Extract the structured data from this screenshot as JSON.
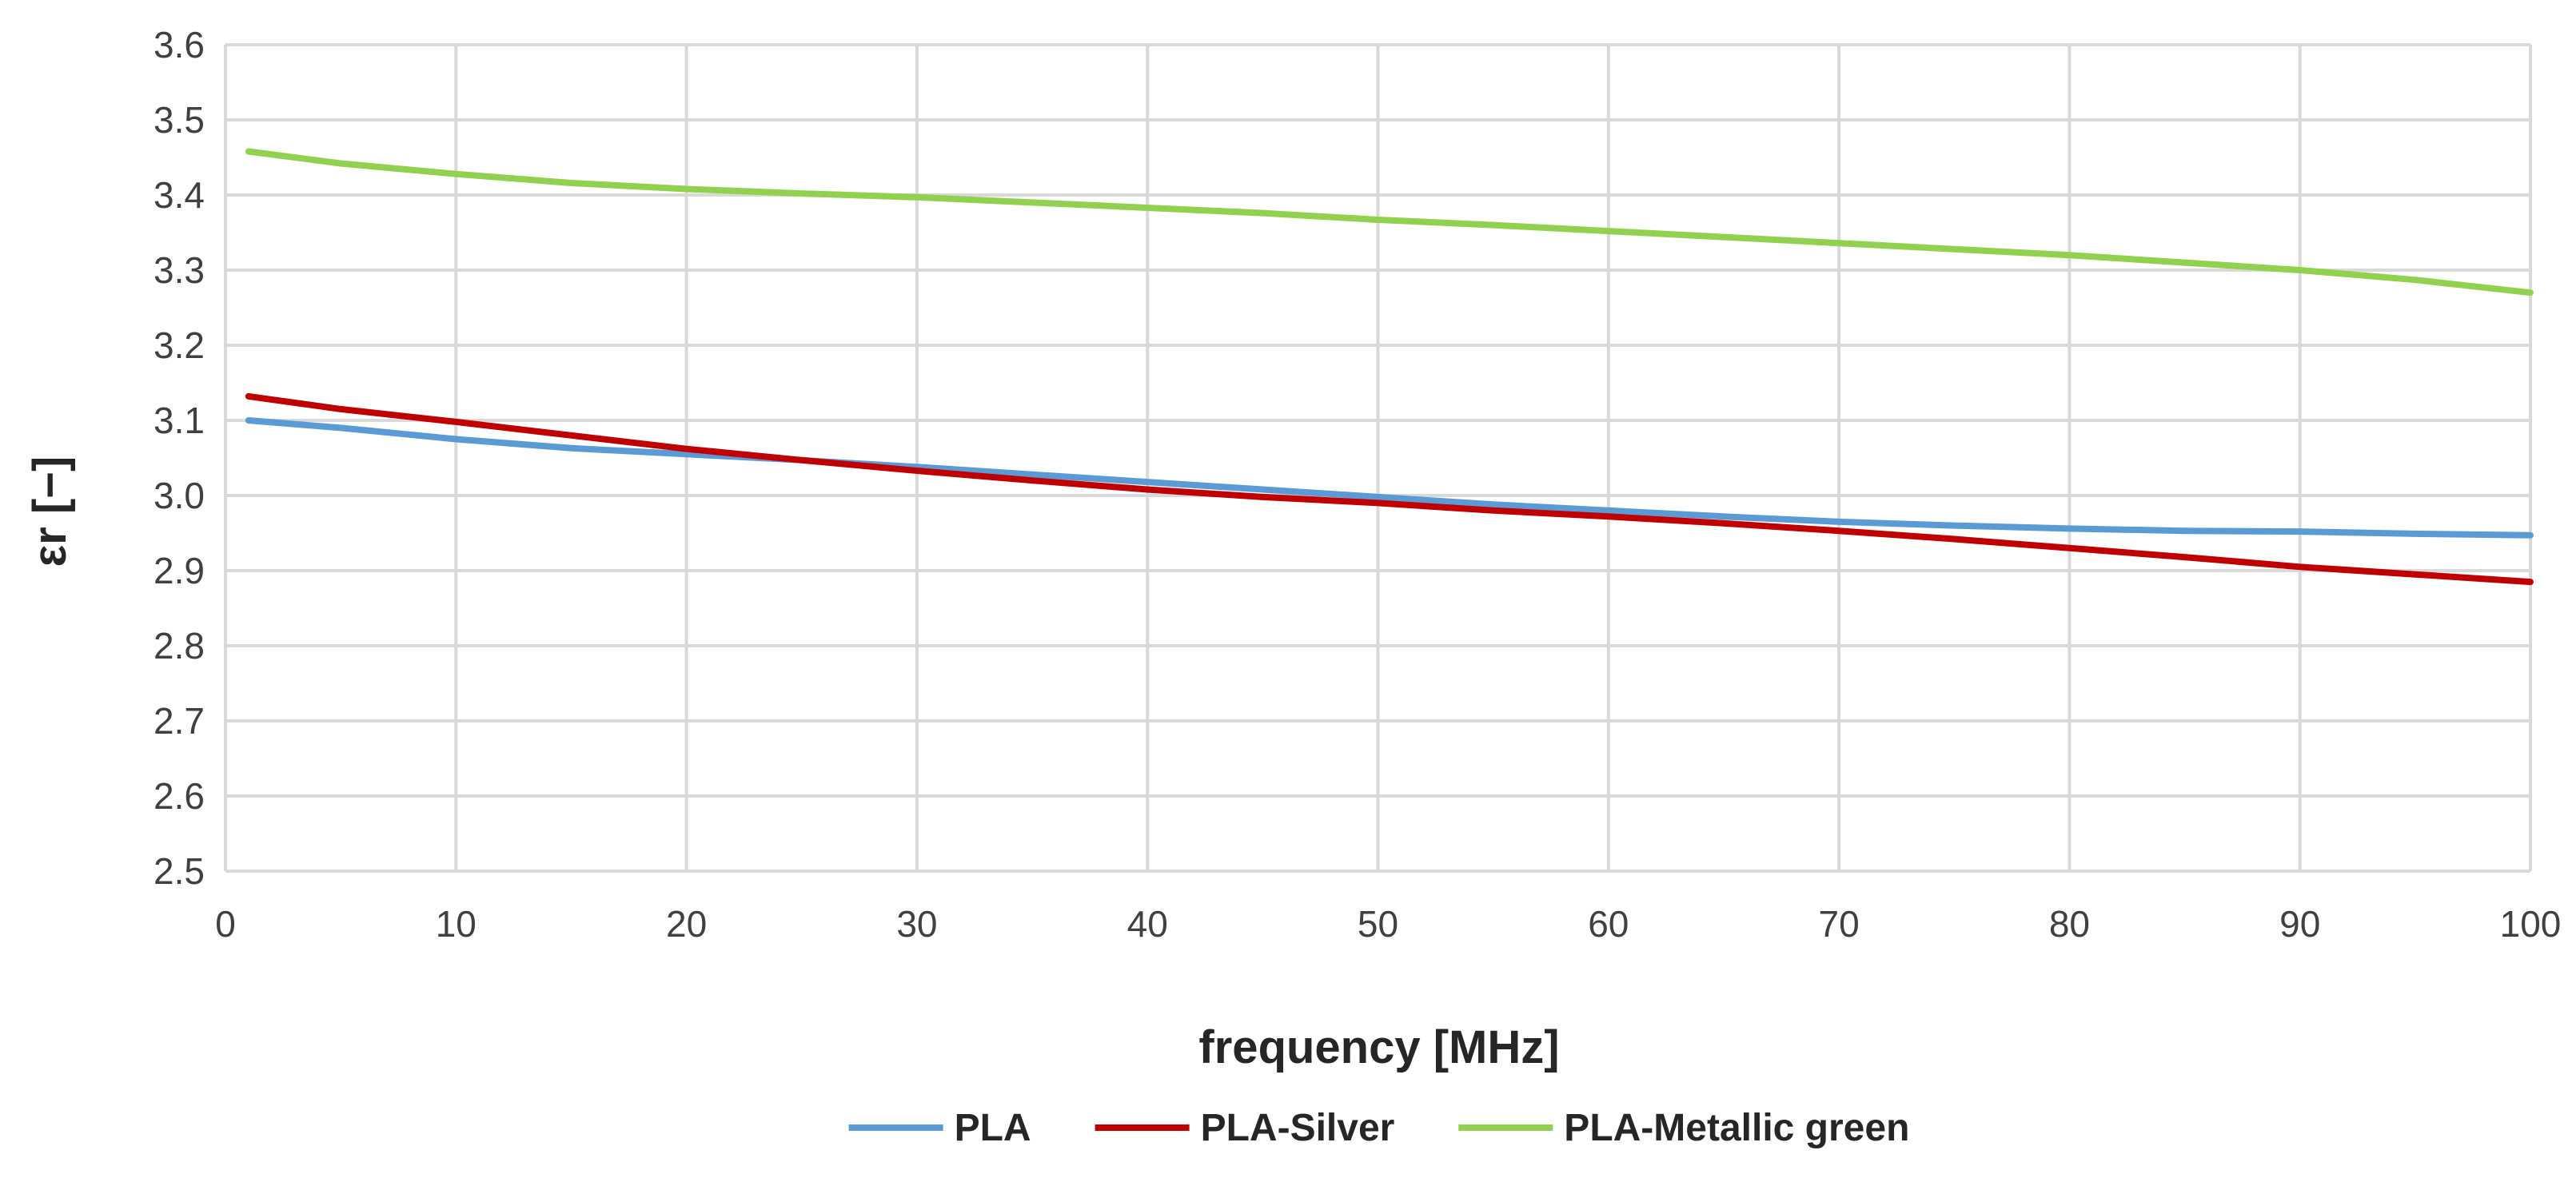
{
  "chart_data": {
    "type": "line",
    "title": "",
    "xlabel": "frequency [MHz]",
    "ylabel": "εr [−]",
    "xlim": [
      0,
      100
    ],
    "ylim": [
      2.5,
      3.6
    ],
    "xticks": [
      0,
      10,
      20,
      30,
      40,
      50,
      60,
      70,
      80,
      90,
      100
    ],
    "yticks": [
      2.5,
      2.6,
      2.7,
      2.8,
      2.9,
      3.0,
      3.1,
      3.2,
      3.3,
      3.4,
      3.5,
      3.6
    ],
    "xtick_labels": [
      "0",
      "10",
      "20",
      "30",
      "40",
      "50",
      "60",
      "70",
      "80",
      "90",
      "100"
    ],
    "ytick_labels": [
      "2.5",
      "2.6",
      "2.7",
      "2.8",
      "2.9",
      "3.0",
      "3.1",
      "3.2",
      "3.3",
      "3.4",
      "3.5",
      "3.6"
    ],
    "grid": true,
    "legend_position": "bottom",
    "x": [
      1,
      5,
      10,
      15,
      20,
      25,
      30,
      35,
      40,
      45,
      50,
      55,
      60,
      65,
      70,
      75,
      80,
      85,
      90,
      95,
      100
    ],
    "series": [
      {
        "name": "PLA",
        "color": "#5b9bd5",
        "values": [
          3.1,
          3.09,
          3.075,
          3.063,
          3.055,
          3.047,
          3.038,
          3.028,
          3.018,
          3.008,
          2.998,
          2.988,
          2.98,
          2.972,
          2.965,
          2.96,
          2.956,
          2.953,
          2.952,
          2.949,
          2.947
        ]
      },
      {
        "name": "PLA-Silver",
        "color": "#c00000",
        "values": [
          3.132,
          3.115,
          3.098,
          3.08,
          3.062,
          3.047,
          3.033,
          3.02,
          3.008,
          2.998,
          2.99,
          2.98,
          2.972,
          2.963,
          2.953,
          2.942,
          2.93,
          2.918,
          2.905,
          2.895,
          2.885
        ]
      },
      {
        "name": "PLA-Metallic green",
        "color": "#92d050",
        "values": [
          3.458,
          3.442,
          3.428,
          3.416,
          3.408,
          3.402,
          3.397,
          3.39,
          3.383,
          3.376,
          3.367,
          3.36,
          3.352,
          3.344,
          3.336,
          3.328,
          3.32,
          3.31,
          3.3,
          3.287,
          3.27
        ]
      }
    ]
  }
}
